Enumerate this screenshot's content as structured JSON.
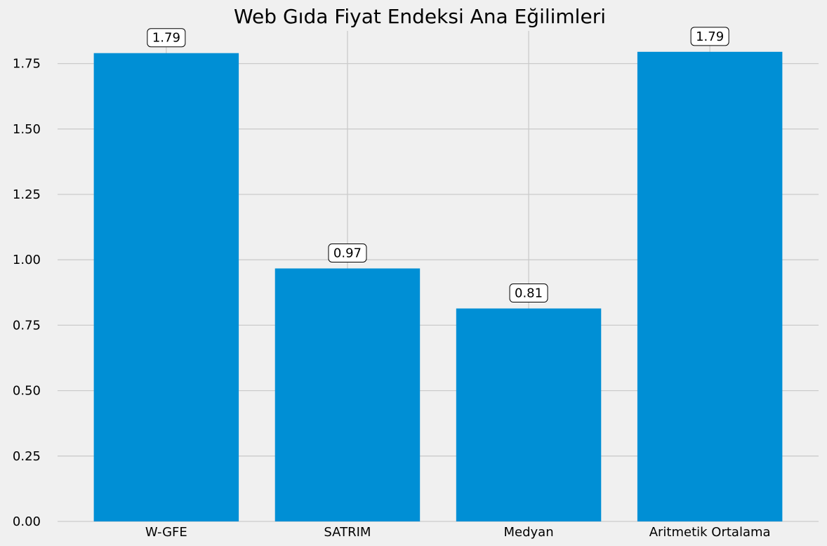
{
  "chart_data": {
    "type": "bar",
    "title": "Web Gıda Fiyat Endeksi Ana Eğilimleri",
    "xlabel": "",
    "ylabel": "",
    "categories": [
      "W-GFE",
      "SATRIM",
      "Medyan",
      "Aritmetik Ortalama"
    ],
    "values": [
      1.79,
      0.967,
      0.814,
      1.795
    ],
    "data_labels": [
      "1.79",
      "0.97",
      "0.81",
      "1.79"
    ],
    "ylim": [
      0,
      1.875
    ],
    "yticks": [
      0.0,
      0.25,
      0.5,
      0.75,
      1.0,
      1.25,
      1.5,
      1.75
    ],
    "ytick_labels": [
      "0.00",
      "0.25",
      "0.50",
      "0.75",
      "1.00",
      "1.25",
      "1.50",
      "1.75"
    ],
    "grid": true,
    "legend": "none",
    "colors": {
      "bar": "#008fd5",
      "background": "#f0f0f0",
      "grid": "#cbcbcb",
      "label_box_fill": "#ffffff",
      "label_box_edge": "#000000"
    }
  }
}
